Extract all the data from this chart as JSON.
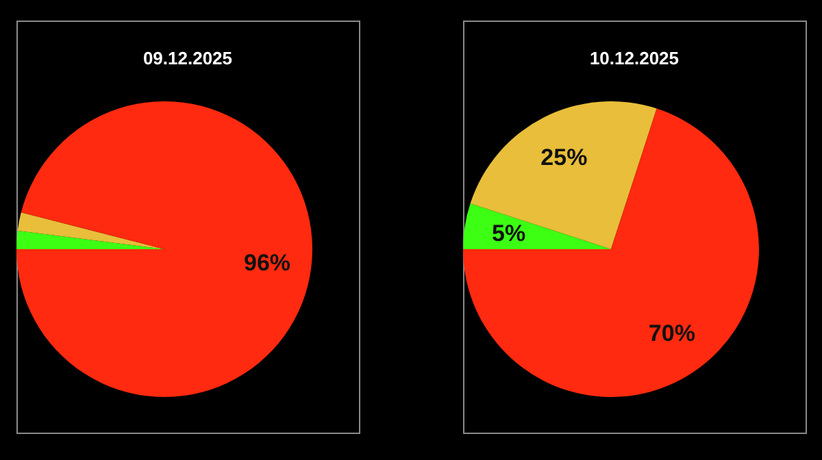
{
  "chart_data": [
    {
      "type": "pie",
      "title": "09.12.2025",
      "categories": [
        null,
        null,
        null
      ],
      "values": [
        2,
        2,
        96
      ],
      "colors": [
        "#3cff14",
        "#e8be3a",
        "#ff2a0f"
      ],
      "value_labels": [
        null,
        null,
        "96%"
      ]
    },
    {
      "type": "pie",
      "title": "10.12.2025",
      "categories": [
        null,
        null,
        null
      ],
      "values": [
        5,
        25,
        70
      ],
      "colors": [
        "#3cff14",
        "#e8be3a",
        "#ff2a0f"
      ],
      "value_labels": [
        "5%",
        "25%",
        "70%"
      ]
    }
  ]
}
